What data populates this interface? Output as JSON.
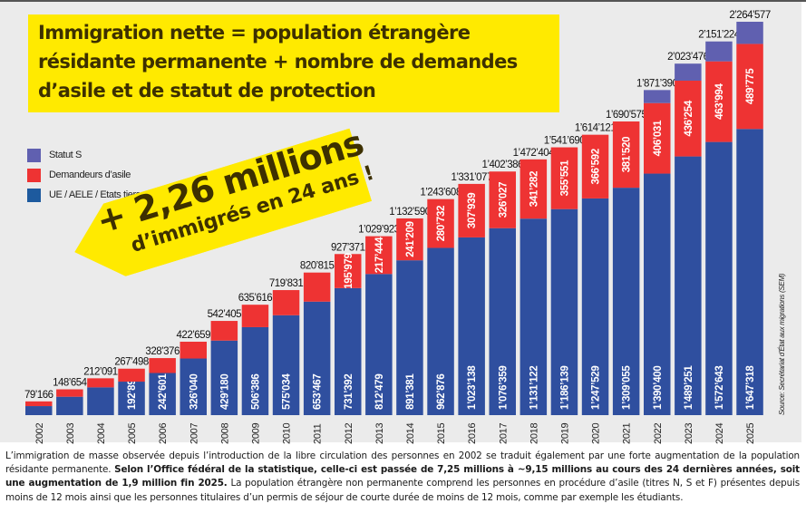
{
  "title": "Immigration nette = population étrangère résidante permanente + nombre de demandes d’asile et de statut de protection",
  "title_lines": [
    "Immigration nette = population étrangère",
    "résidante permanente + nombre de demandes",
    "d’asile et de statut de protection"
  ],
  "banner": {
    "big": "+ 2,26 millions",
    "small": "d’immigrés en 24 ans !"
  },
  "source": "Source: Secrétariat d’État aux migrations (SEM)",
  "colors": {
    "statut_s": "#6060b0",
    "demandeurs_asile": "#ee3333",
    "ue_aele": "#2f4f9f",
    "highlight": "#ffea00",
    "panel": "#ebebeb"
  },
  "caption": {
    "part1": "L’immigration de masse observée depuis l’introduction de la libre circulation des personnes en 2002 se traduit également par une forte augmentation de la population résidante permanente. ",
    "part2_bold": "Selon l’Office fédéral de la statistique, celle-ci est passée de 7,25 millions à ~9,15 millions au cours des 24 dernières années, soit une augmentation de 1,9 million fin 2025.",
    "part3": " La population étrangère non permanente comprend les personnes en procédure d’asile (titres N, S et F) présentes depuis moins de 12 mois ainsi que les personnes titulaires d’un permis de séjour de courte durée de moins de 12 mois, comme par exemple les étudiants."
  },
  "chart_data": {
    "type": "bar",
    "stacked": true,
    "title": "Immigration nette = population étrangère résidante permanente + nombre de demandes d’asile et de statut de protection",
    "xlabel": "",
    "ylabel": "",
    "grid": false,
    "legend_position": "top-left",
    "categories": [
      "2002",
      "2003",
      "2004",
      "2005",
      "2006",
      "2007",
      "2008",
      "2009",
      "2010",
      "2011",
      "2012",
      "2013",
      "2014",
      "2015",
      "2016",
      "2017",
      "2018",
      "2019",
      "2020",
      "2021",
      "2022",
      "2023",
      "2024",
      "2025"
    ],
    "series": [
      {
        "name": "UE / AELE / Etats tiers",
        "color_key": "ue_aele",
        "values": [
          52000,
          106000,
          160000,
          192896,
          242601,
          326040,
          429180,
          506386,
          575034,
          653467,
          731392,
          812479,
          891381,
          962876,
          1023138,
          1076359,
          1131122,
          1186139,
          1247529,
          1309055,
          1390400,
          1489251,
          1572643,
          1647318
        ],
        "labels": [
          "",
          "",
          "",
          "192’896",
          "242’601",
          "326’040",
          "429’180",
          "506’386",
          "575’034",
          "653’467",
          "731’392",
          "812’479",
          "891’381",
          "962’876",
          "1’023’138",
          "1’076’359",
          "1’131’122",
          "1’186’139",
          "1’247’529",
          "1’309’055",
          "1’390’400",
          "1’489’251",
          "1’572’643",
          "1’647’318"
        ]
      },
      {
        "name": "Demandeurs d’asile",
        "color_key": "demandeurs_asile",
        "values": [
          27166,
          42654,
          52091,
          74602,
          85775,
          96619,
          113225,
          129230,
          144797,
          167348,
          195979,
          217444,
          241209,
          280732,
          307939,
          326027,
          341282,
          355551,
          366592,
          381520,
          406031,
          436254,
          463994,
          489775
        ],
        "labels": [
          "",
          "",
          "",
          "",
          "",
          "",
          "",
          "",
          "",
          "",
          "195’979",
          "217’444",
          "241’209",
          "280’732",
          "307’939",
          "326’027",
          "341’282",
          "355’551",
          "366’592",
          "381’520",
          "406’031",
          "436’254",
          "463’994",
          "489’775"
        ]
      },
      {
        "name": "Statut S",
        "color_key": "statut_s",
        "values": [
          0,
          0,
          0,
          0,
          0,
          0,
          0,
          0,
          0,
          0,
          0,
          0,
          0,
          0,
          0,
          0,
          0,
          0,
          0,
          0,
          74959,
          97971,
          114587,
          127484
        ],
        "labels": [
          "",
          "",
          "",
          "",
          "",
          "",
          "",
          "",
          "",
          "",
          "",
          "",
          "",
          "",
          "",
          "",
          "",
          "",
          "",
          "",
          "",
          "",
          "",
          ""
        ]
      }
    ],
    "totals": [
      79166,
      148654,
      212091,
      267498,
      328376,
      422659,
      542405,
      635616,
      719831,
      820815,
      927371,
      1029923,
      1132590,
      1243608,
      1331077,
      1402386,
      1472404,
      1541690,
      1614121,
      1690575,
      1871390,
      2023476,
      2151224,
      2264577
    ],
    "total_labels": [
      "79’166",
      "148’654",
      "212’091",
      "267’498",
      "328’376",
      "422’659",
      "542’405",
      "635’616",
      "719’831",
      "820’815",
      "927’371",
      "1’029’923",
      "1’132’590",
      "1’243’608",
      "1’331’077",
      "1’402’386",
      "1’472’404",
      "1’541’690",
      "1’614’121",
      "1’690’575",
      "1’871’390",
      "2’023’476",
      "2’151’224",
      "2’264’577"
    ],
    "ylim": [
      0,
      2264577
    ],
    "legend": [
      "Statut S",
      "Demandeurs d’asile",
      "UE / AELE / Etats tiers"
    ]
  }
}
